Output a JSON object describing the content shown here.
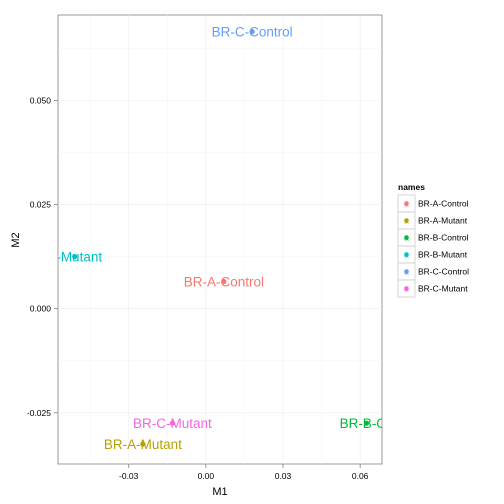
{
  "chart_data": {
    "type": "scatter",
    "title": "",
    "xlabel": "M1",
    "ylabel": "M2",
    "xlim": [
      -0.0575,
      0.0685
    ],
    "ylim": [
      -0.0373,
      0.0705
    ],
    "x_ticks": [
      {
        "value": -0.03,
        "label": "-0.03"
      },
      {
        "value": 0.0,
        "label": "0.00"
      },
      {
        "value": 0.03,
        "label": "0.03"
      },
      {
        "value": 0.06,
        "label": "0.06"
      }
    ],
    "y_ticks": [
      {
        "value": -0.025,
        "label": "-0.025"
      },
      {
        "value": 0.0,
        "label": "0.000"
      },
      {
        "value": 0.025,
        "label": "0.025"
      },
      {
        "value": 0.05,
        "label": "0.050"
      }
    ],
    "grid": true,
    "legend": {
      "title": "names",
      "position": "right",
      "entries": [
        {
          "label": "BR-A-Control",
          "color": "#F8766D"
        },
        {
          "label": "BR-A-Mutant",
          "color": "#B79F00"
        },
        {
          "label": "BR-B-Control",
          "color": "#00BA38"
        },
        {
          "label": "BR-B-Mutant",
          "color": "#00BFC4"
        },
        {
          "label": "BR-C-Control",
          "color": "#619CFF"
        },
        {
          "label": "BR-C-Mutant",
          "color": "#F564E3"
        }
      ]
    },
    "points": [
      {
        "name": "BR-A-Control",
        "text": "BR-A-Control",
        "x": 0.007,
        "y": 0.0065,
        "color": "#F8766D"
      },
      {
        "name": "BR-A-Mutant",
        "text": "BR-A-Mutant",
        "x": -0.0245,
        "y": -0.0325,
        "color": "#B79F00"
      },
      {
        "name": "BR-B-Control",
        "text": "BR-B-Co",
        "x": 0.0625,
        "y": -0.0275,
        "color": "#00BA38"
      },
      {
        "name": "BR-B-Mutant",
        "text": "B-Mutant",
        "x": -0.051,
        "y": 0.0125,
        "color": "#00BFC4"
      },
      {
        "name": "BR-C-Control",
        "text": "BR-C-Control",
        "x": 0.018,
        "y": 0.0665,
        "color": "#619CFF"
      },
      {
        "name": "BR-C-Mutant",
        "text": "BR-C-Mutant",
        "x": -0.013,
        "y": -0.0275,
        "color": "#F564E3"
      }
    ]
  }
}
